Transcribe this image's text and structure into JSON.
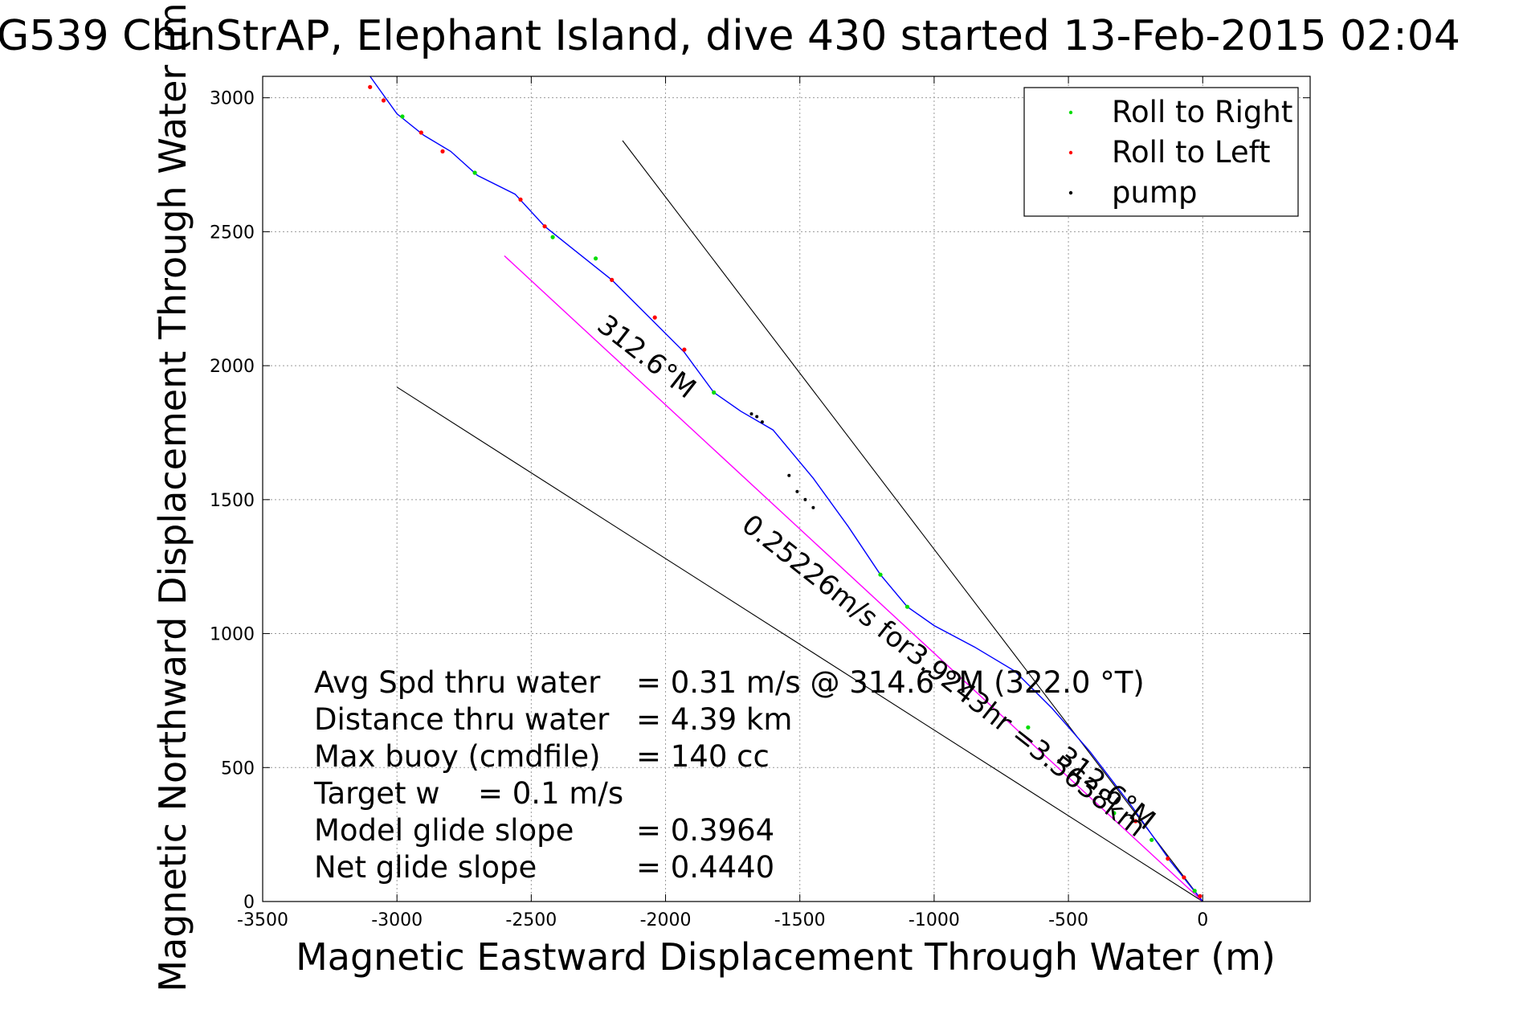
{
  "chart_data": {
    "type": "line",
    "title": "G539 ChinStrAP, Elephant Island, dive 430 started 13-Feb-2015 02:04",
    "xlabel": "Magnetic Eastward Displacement Through Water (m)",
    "ylabel": "Magnetic Northward Displacement Through Water (m)",
    "xlim": [
      -3500,
      400
    ],
    "ylim": [
      0,
      3080
    ],
    "grid": true,
    "legend_position": "top-right",
    "x_ticks": [
      -3500,
      -3000,
      -2500,
      -2000,
      -1500,
      -1000,
      -500,
      0
    ],
    "x_tick_labels": [
      "-3500",
      "-3000",
      "-2500",
      "-2000",
      "-1500",
      "-1000",
      "-500",
      "0"
    ],
    "y_ticks": [
      0,
      500,
      1000,
      1500,
      2000,
      2500,
      3000
    ],
    "y_tick_labels": [
      "0",
      "500",
      "1000",
      "1500",
      "2000",
      "2500",
      "3000"
    ],
    "colors": {
      "track": "#0000ff",
      "model_line": "#ff00ff",
      "roll_right": "#00dd00",
      "roll_left": "#ff0000",
      "pump": "#000000",
      "reference": "#000000"
    },
    "legend": [
      {
        "label": "Roll to Right",
        "color": "#00dd00"
      },
      {
        "label": "Roll to Left",
        "color": "#ff0000"
      },
      {
        "label": "pump",
        "color": "#000000"
      }
    ],
    "track": {
      "x": [
        0,
        -120,
        -260,
        -420,
        -560,
        -700,
        -850,
        -1000,
        -1100,
        -1200,
        -1320,
        -1450,
        -1600,
        -1720,
        -1820,
        -1930,
        -2050,
        -2200,
        -2350,
        -2450,
        -2560,
        -2700,
        -2800,
        -2900,
        -3000,
        -3100
      ],
      "y": [
        0,
        150,
        350,
        560,
        720,
        860,
        950,
        1030,
        1100,
        1220,
        1400,
        1580,
        1760,
        1830,
        1900,
        2050,
        2170,
        2320,
        2440,
        2520,
        2640,
        2710,
        2800,
        2860,
        2940,
        3080
      ]
    },
    "model_track": {
      "x": [
        0,
        -2600
      ],
      "y": [
        0,
        2410
      ]
    },
    "reference_lines": [
      {
        "x": [
          0,
          -2160
        ],
        "y": [
          0,
          2840
        ]
      },
      {
        "x": [
          0,
          -3000
        ],
        "y": [
          0,
          1920
        ]
      }
    ],
    "roll_right_points": {
      "x": [
        -30,
        -190,
        -330,
        -650,
        -1100,
        -1200,
        -1820,
        -2260,
        -2420,
        -2710,
        -2980
      ],
      "y": [
        40,
        230,
        330,
        650,
        1100,
        1220,
        1900,
        2400,
        2480,
        2720,
        2930
      ]
    },
    "roll_left_points": {
      "x": [
        -10,
        -70,
        -130,
        -250,
        -1930,
        -2040,
        -2200,
        -2450,
        -2540,
        -2830,
        -2910,
        -3100,
        -3050
      ],
      "y": [
        20,
        90,
        160,
        300,
        2060,
        2180,
        2320,
        2520,
        2620,
        2800,
        2870,
        3040,
        2990
      ],
      "note": ""
    },
    "pump_points": {
      "x": [
        -1680,
        -1660,
        -1640,
        -1540,
        -1510,
        -1480,
        -1450
      ],
      "y": [
        1820,
        1810,
        1790,
        1590,
        1530,
        1500,
        1470
      ]
    },
    "annotations": {
      "heading_upper": "312.6°M",
      "heading_lower": "312.6°M",
      "distance_note": "0.25226m/s for3.9243hr =3.5638km"
    },
    "stats": [
      {
        "label": "Avg Spd thru water",
        "value": "=  0.31 m/s @ 314.6 °M (322.0 °T)"
      },
      {
        "label": "Distance thru water",
        "value": "=  4.39 km"
      },
      {
        "label": "Max buoy (cmdfile)",
        "value": "= 140 cc"
      },
      {
        "label": "Target w",
        "value": "= 0.1 m/s"
      },
      {
        "label": "Model glide slope",
        "value": "= 0.3964"
      },
      {
        "label": "Net glide slope",
        "value": "= 0.4440"
      }
    ]
  }
}
